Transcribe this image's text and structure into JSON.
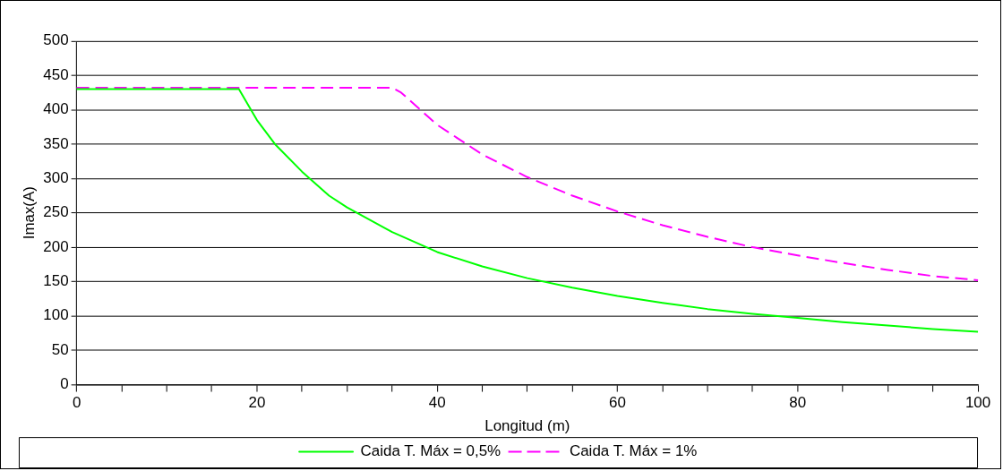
{
  "chart_data": {
    "type": "line",
    "xlabel": "Longitud (m)",
    "ylabel": "Imax(A)",
    "xlim": [
      0,
      100
    ],
    "xticks": [
      0,
      {
        "value": 5,
        "label": null
      },
      {
        "value": 10,
        "label": null
      },
      {
        "value": 15,
        "label": null
      },
      20,
      {
        "value": 25,
        "label": null
      },
      {
        "value": 30,
        "label": null
      },
      {
        "value": 35,
        "label": null
      },
      40,
      {
        "value": 45,
        "label": null
      },
      {
        "value": 50,
        "label": null
      },
      {
        "value": 55,
        "label": null
      },
      60,
      {
        "value": 65,
        "label": null
      },
      {
        "value": 70,
        "label": null
      },
      {
        "value": 75,
        "label": null
      },
      80,
      {
        "value": 85,
        "label": null
      },
      {
        "value": 90,
        "label": null
      },
      {
        "value": 95,
        "label": null
      },
      100
    ],
    "ylim": [
      0,
      500
    ],
    "yticks": [
      0,
      50,
      100,
      150,
      200,
      250,
      300,
      350,
      400,
      450,
      500
    ],
    "grid": "y",
    "legend": "bottom",
    "marker": "none",
    "series": [
      {
        "name": "Caida T. Máx = 0,5%",
        "color": "#00ff00",
        "line_style": "solid",
        "x": [
          0,
          5,
          10,
          15,
          18,
          20,
          22,
          25,
          28,
          30,
          35,
          40,
          45,
          50,
          55,
          60,
          65,
          70,
          75,
          80,
          85,
          90,
          95,
          100
        ],
        "values": [
          430,
          430,
          430,
          430,
          430,
          385,
          350,
          310,
          275,
          258,
          222,
          193,
          172,
          155,
          141,
          129,
          119,
          110,
          103,
          97,
          91,
          86,
          81,
          77
        ]
      },
      {
        "name": "Caida T. Máx = 1%",
        "color": "#ff00ff",
        "line_style": "dashed",
        "x": [
          0,
          10,
          20,
          30,
          35,
          36,
          40,
          45,
          50,
          55,
          60,
          65,
          70,
          75,
          80,
          85,
          90,
          95,
          100
        ],
        "values": [
          432,
          432,
          432,
          432,
          432,
          425,
          378,
          335,
          302,
          275,
          252,
          232,
          215,
          200,
          188,
          177,
          167,
          158,
          152
        ]
      }
    ]
  }
}
